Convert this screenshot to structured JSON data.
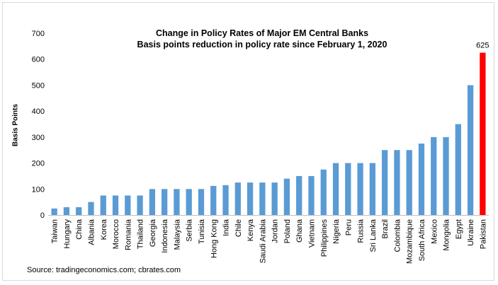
{
  "chart_data": {
    "type": "bar",
    "title_lines": [
      "Change in Policy Rates of Major EM Central Banks",
      "Basis points reduction in policy rate since February 1, 2020"
    ],
    "ylabel": "Basis Points",
    "xlabel": "",
    "ylim": [
      0,
      700
    ],
    "yticks": [
      0,
      100,
      200,
      300,
      400,
      500,
      600,
      700
    ],
    "categories": [
      "Taiwan",
      "Hungary",
      "China",
      "Albania",
      "Korea",
      "Morocco",
      "Romania",
      "Thailand",
      "Georgia",
      "Indonesia",
      "Malaysia",
      "Serbia",
      "Tunisia",
      "Hong Kong",
      "India",
      "Chile",
      "Kenya",
      "Saudi Arabia",
      "Jordan",
      "Poland",
      "Ghana",
      "Vietnam",
      "Philippines",
      "Nigeria",
      "Peru",
      "Russia",
      "Sri Lanka",
      "Brazil",
      "Colombia",
      "Mozambique",
      "South Africa",
      "Mexico",
      "Mongolia",
      "Egypt",
      "Ukraine",
      "Pakistan"
    ],
    "values": [
      25,
      30,
      30,
      50,
      75,
      75,
      75,
      75,
      100,
      100,
      100,
      100,
      100,
      112,
      115,
      125,
      125,
      125,
      125,
      140,
      150,
      150,
      175,
      200,
      200,
      200,
      200,
      250,
      250,
      250,
      275,
      300,
      300,
      350,
      500,
      625
    ],
    "bar_color": "#5b9bd5",
    "highlight_color": "#ff0000",
    "highlight_category": "Pakistan",
    "data_labels": [
      {
        "category": "Pakistan",
        "text": "625"
      }
    ],
    "grid": false,
    "legend": "none"
  },
  "source": "Source: tradingeconomics.com; cbrates.com"
}
